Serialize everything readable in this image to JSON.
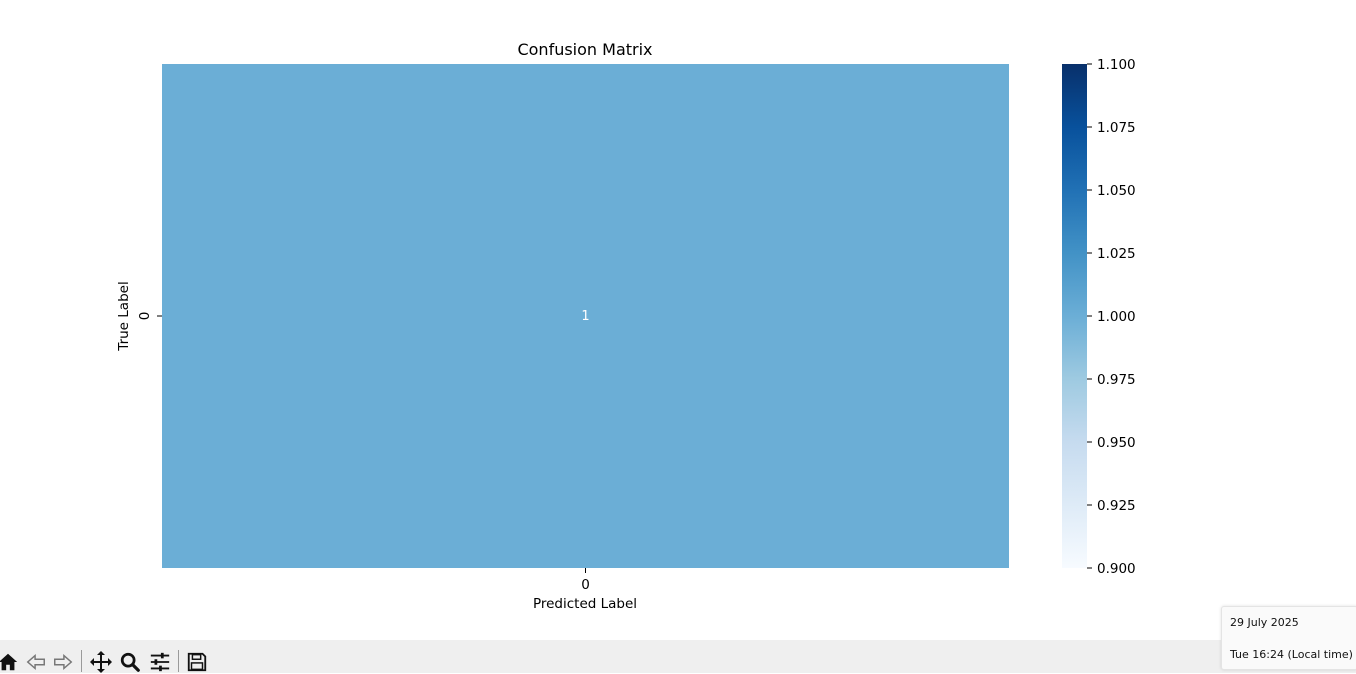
{
  "chart_data": {
    "type": "heatmap",
    "title": "Confusion Matrix",
    "xlabel": "Predicted Label",
    "ylabel": "True Label",
    "x_categories": [
      "0"
    ],
    "y_categories": [
      "0"
    ],
    "values": [
      [
        1
      ]
    ],
    "cell_labels": [
      [
        "1"
      ]
    ],
    "cell_color": "#6baed6",
    "cell_label_color": "#ffffff",
    "colorbar": {
      "range": [
        0.9,
        1.1
      ],
      "ticks": [
        "0.900",
        "0.925",
        "0.950",
        "0.975",
        "1.000",
        "1.025",
        "1.050",
        "1.075",
        "1.100"
      ],
      "colormap": "Blues",
      "colors": [
        "#f7fbff",
        "#deebf7",
        "#c6dbef",
        "#9ecae1",
        "#6baed6",
        "#4292c6",
        "#2171b5",
        "#08519c",
        "#08306b"
      ]
    }
  },
  "toolbar": {
    "buttons": [
      "home-icon",
      "back-icon",
      "forward-icon",
      "pan-icon",
      "zoom-icon",
      "configure-subplots-icon",
      "save-icon"
    ]
  },
  "tooltip": {
    "date": "29 July 2025",
    "time": "Tue 16:24 (Local time)"
  }
}
